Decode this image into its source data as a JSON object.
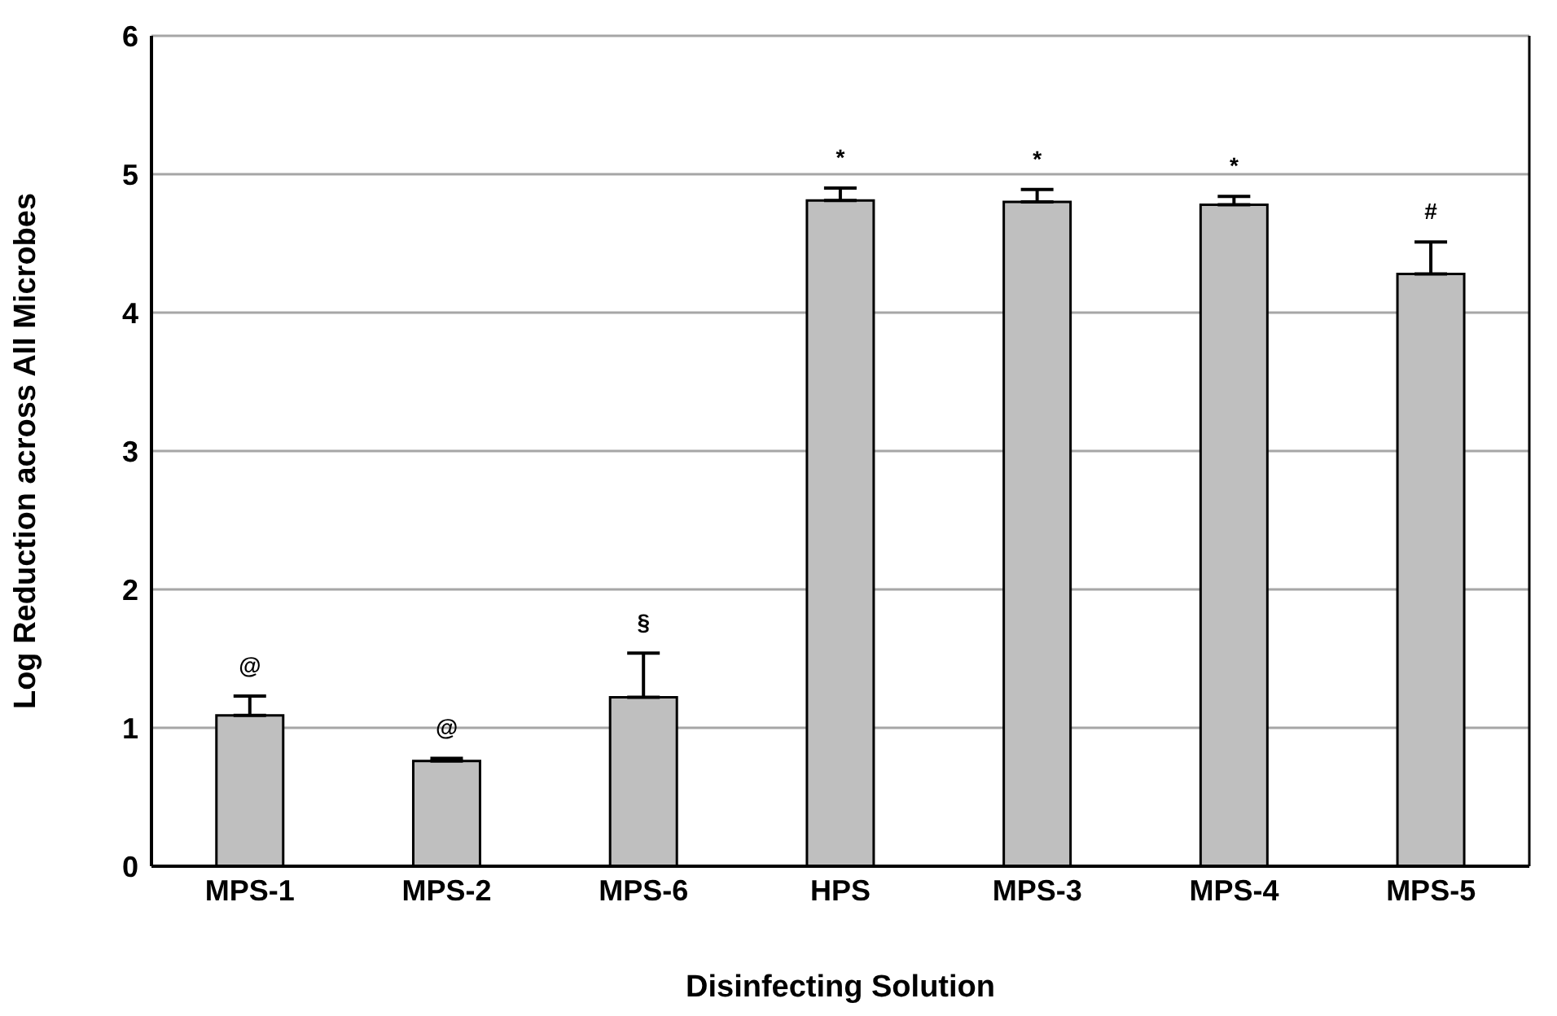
{
  "chart_data": {
    "type": "bar",
    "xlabel": "Disinfecting Solution",
    "ylabel": "Log Reduction across All Microbes",
    "categories": [
      "MPS-1",
      "MPS-2",
      "MPS-6",
      "HPS",
      "MPS-3",
      "MPS-4",
      "MPS-5"
    ],
    "values": [
      1.09,
      0.76,
      1.22,
      4.81,
      4.8,
      4.78,
      4.28
    ],
    "errors": [
      [
        1.09,
        1.23
      ],
      [
        0.76,
        0.78
      ],
      [
        1.22,
        1.54
      ],
      [
        4.81,
        4.9
      ],
      [
        4.8,
        4.89
      ],
      [
        4.78,
        4.84
      ],
      [
        4.28,
        4.51
      ]
    ],
    "color": "#bfbfbf",
    "ylim": [
      0,
      6
    ],
    "yticks": [
      0,
      1,
      2,
      3,
      4,
      5,
      6
    ],
    "grid": "y",
    "legend": false,
    "annotations": [
      "@",
      "@",
      "§",
      "*",
      "*",
      "*",
      "#"
    ]
  }
}
